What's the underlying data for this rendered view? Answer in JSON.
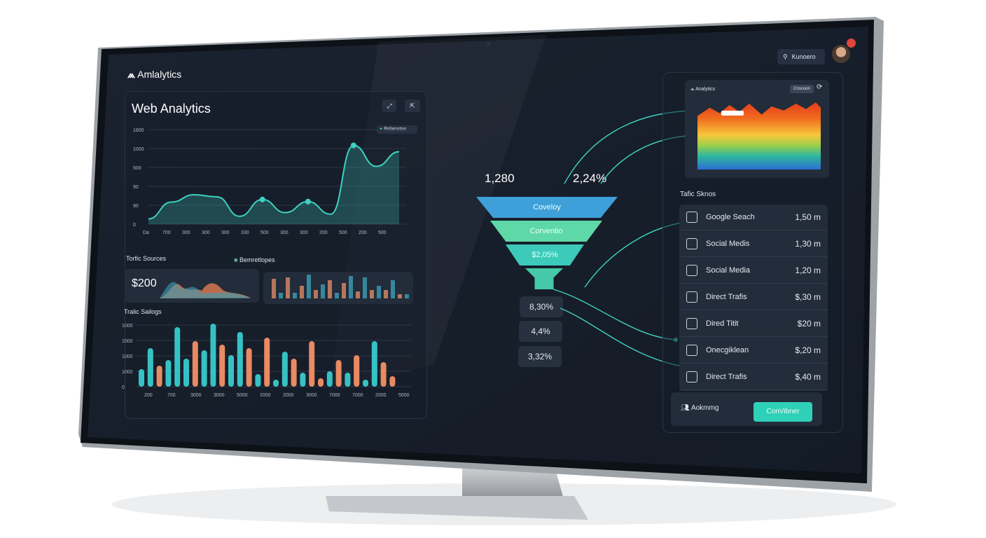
{
  "app": {
    "name": "Amlalytics",
    "logo_icon": "analytics-logo-icon"
  },
  "header": {
    "search_label": "Kunoero",
    "avatar": "user-avatar",
    "notification_color": "#e0463c"
  },
  "main": {
    "title": "Web Analytics",
    "legend_label": "Rolanutoo",
    "line_chart": {
      "type": "area",
      "y_ticks": [
        "0",
        "90",
        "90",
        "500",
        "1000",
        "1800"
      ],
      "x_ticks": [
        "Da",
        "700",
        "300",
        "300",
        "300",
        "330",
        "500",
        "300",
        "300",
        "200",
        "500",
        "200",
        "500"
      ],
      "values": [
        100,
        420,
        560,
        520,
        150,
        470,
        220,
        430,
        190,
        1500,
        1100,
        1380
      ],
      "color": "#3fd1c1"
    },
    "traffic_sources": {
      "title": "Torfic Sources",
      "legend": "Bemretlopes",
      "amount": "$200"
    },
    "traffic_savings": {
      "title": "Tralic Sailogs",
      "y_ticks": [
        "0",
        "1000",
        "1000",
        "1000",
        "1000"
      ],
      "x_ticks": [
        "200",
        "700",
        "3000",
        "3000",
        "5000",
        "2000",
        "2000",
        "3000",
        "7000",
        "7000",
        "2000",
        "5000"
      ],
      "bars": [
        {
          "v": 25,
          "c": "teal"
        },
        {
          "v": 55,
          "c": "teal"
        },
        {
          "v": 30,
          "c": "orange"
        },
        {
          "v": 38,
          "c": "teal"
        },
        {
          "v": 85,
          "c": "teal"
        },
        {
          "v": 40,
          "c": "teal"
        },
        {
          "v": 65,
          "c": "orange"
        },
        {
          "v": 52,
          "c": "teal"
        },
        {
          "v": 90,
          "c": "teal"
        },
        {
          "v": 60,
          "c": "orange"
        },
        {
          "v": 45,
          "c": "teal"
        },
        {
          "v": 78,
          "c": "teal"
        },
        {
          "v": 55,
          "c": "orange"
        },
        {
          "v": 18,
          "c": "teal"
        },
        {
          "v": 70,
          "c": "orange"
        },
        {
          "v": 10,
          "c": "teal"
        },
        {
          "v": 50,
          "c": "teal"
        },
        {
          "v": 40,
          "c": "orange"
        },
        {
          "v": 20,
          "c": "teal"
        },
        {
          "v": 65,
          "c": "orange"
        },
        {
          "v": 12,
          "c": "orange"
        },
        {
          "v": 22,
          "c": "teal"
        },
        {
          "v": 38,
          "c": "orange"
        },
        {
          "v": 20,
          "c": "teal"
        },
        {
          "v": 45,
          "c": "orange"
        },
        {
          "v": 10,
          "c": "teal"
        },
        {
          "v": 65,
          "c": "teal"
        },
        {
          "v": 35,
          "c": "orange"
        },
        {
          "v": 15,
          "c": "orange"
        }
      ]
    }
  },
  "funnel": {
    "top_left": "1,280",
    "top_right": "2,24%",
    "stages": [
      "Coveloy",
      "Corventio",
      "$2,05%"
    ],
    "results": [
      "8,30%",
      "4,4%",
      "3,32%"
    ],
    "colors": [
      "#3f9fd8",
      "#5fd8a8",
      "#3ccbbb",
      "#45c9a8"
    ]
  },
  "sidebar": {
    "mini_title": "Analytics",
    "mini_button": "Cnscoon",
    "sources_title": "Tafic Sknos",
    "sources": [
      {
        "icon": "search-icon",
        "label": "Google Seach",
        "value": "1,50 m"
      },
      {
        "icon": "share-icon",
        "label": "Social Medis",
        "value": "1,30 m"
      },
      {
        "icon": "briefcase-icon",
        "label": "Social Media",
        "value": "1,20 m"
      },
      {
        "icon": "grid-icon",
        "label": "Direct Trafis",
        "value": "$,30 m"
      },
      {
        "icon": "user-icon",
        "label": "Dired Titit",
        "value": "$20 m"
      },
      {
        "icon": "check-icon",
        "label": "Onecgiklean",
        "value": "$,20 m"
      },
      {
        "icon": "user-icon",
        "label": "Direct Trafis",
        "value": "$,40 m"
      }
    ],
    "footer_label": "Aokmmg",
    "footer_button": "ConVibner",
    "accent": "#2fd0b8"
  }
}
